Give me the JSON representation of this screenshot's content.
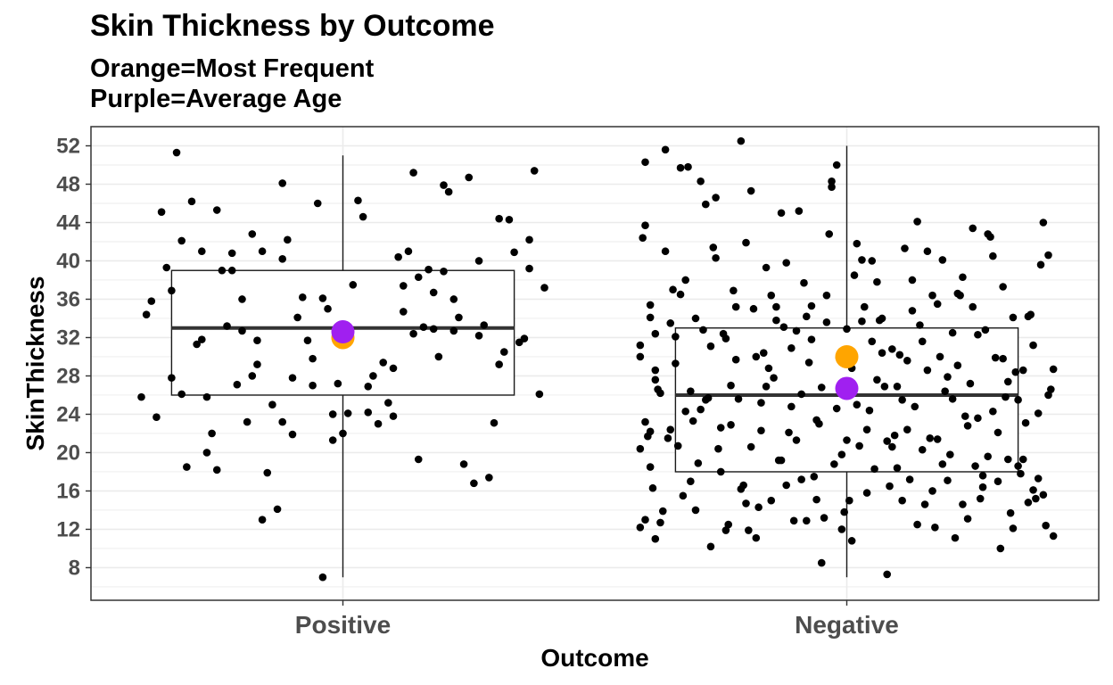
{
  "chart_data": {
    "type": "boxplot",
    "title": "Skin Thickness by Outcome",
    "subtitle_lines": [
      "Orange=Most Frequent",
      "Purple=Average Age"
    ],
    "xlabel": "Outcome",
    "ylabel": "SkinThickness",
    "categories": [
      "Positive",
      "Negative"
    ],
    "ylim": [
      4.6,
      54
    ],
    "yticks": [
      8,
      12,
      16,
      20,
      24,
      28,
      32,
      36,
      40,
      44,
      48,
      52
    ],
    "grid": true,
    "colors": {
      "orange": "#FFA500",
      "purple": "#A020F0",
      "points": "#000000",
      "box": "#1a1a1a",
      "median": "#333333",
      "grid": "#ebebeb"
    },
    "boxes": [
      {
        "category": "Positive",
        "min": 7,
        "q1": 26,
        "median": 33,
        "q3": 39,
        "max": 51,
        "mode": 32,
        "mean": 32.6
      },
      {
        "category": "Negative",
        "min": 7,
        "q1": 18,
        "median": 26,
        "q3": 33,
        "max": 52,
        "mode": 30,
        "mean": 26.7
      }
    ],
    "points": [
      {
        "category": "Positive",
        "x_offset": [
          -0.4,
          -0.39,
          -0.37,
          -0.36,
          -0.35,
          -0.34,
          -0.34,
          -0.33,
          -0.32,
          -0.32,
          -0.31,
          -0.29,
          -0.28,
          -0.28,
          -0.27,
          -0.27,
          -0.26,
          -0.25,
          -0.25,
          -0.24,
          -0.23,
          -0.22,
          -0.21,
          -0.2,
          -0.2,
          -0.19,
          -0.18,
          -0.18,
          -0.17,
          -0.17,
          -0.16,
          -0.16,
          -0.15,
          -0.14,
          -0.13,
          -0.12,
          -0.12,
          -0.11,
          -0.1,
          -0.1,
          -0.09,
          -0.08,
          -0.07,
          -0.06,
          -0.06,
          -0.05,
          -0.04,
          -0.03,
          -0.02,
          -0.02,
          -0.01,
          0.0,
          0.01,
          0.02,
          0.03,
          0.04,
          0.05,
          0.06,
          0.07,
          0.08,
          0.09,
          0.1,
          0.1,
          0.11,
          0.12,
          0.12,
          0.13,
          0.14,
          0.15,
          0.15,
          0.16,
          0.17,
          0.18,
          0.18,
          0.19,
          0.2,
          0.2,
          0.21,
          0.22,
          0.23,
          0.24,
          0.25,
          0.26,
          0.27,
          0.27,
          0.28,
          0.29,
          0.3,
          0.31,
          0.32,
          0.33,
          0.34,
          0.35,
          0.36,
          0.37,
          0.38,
          0.39,
          0.4,
          -0.38,
          -0.3,
          -0.22,
          -0.12,
          -0.04,
          0.05,
          0.14,
          0.22,
          0.31,
          0.37
        ],
        "y": [
          25.8,
          34.4,
          23.7,
          45.1,
          39.3,
          36.9,
          27.8,
          51.3,
          42.1,
          26.1,
          18.5,
          31.3,
          41.0,
          31.8,
          25.8,
          20.0,
          22.0,
          45.3,
          18.2,
          39.0,
          33.2,
          40.8,
          27.1,
          36.0,
          32.7,
          23.2,
          28.0,
          42.8,
          29.2,
          31.7,
          41.0,
          13.0,
          17.9,
          25.0,
          14.1,
          40.2,
          48.1,
          42.2,
          21.9,
          27.8,
          34.1,
          36.2,
          31.7,
          29.8,
          27.0,
          46.0,
          36.1,
          35.0,
          24.0,
          21.3,
          27.2,
          22.0,
          24.1,
          37.5,
          46.3,
          44.6,
          26.9,
          28.0,
          23.0,
          29.4,
          25.2,
          28.8,
          23.8,
          40.4,
          37.4,
          34.7,
          41.0,
          49.2,
          19.3,
          38.3,
          33.1,
          39.1,
          32.9,
          36.7,
          30.0,
          38.9,
          47.9,
          47.2,
          32.7,
          34.1,
          18.8,
          48.7,
          16.8,
          32.2,
          40.0,
          33.3,
          17.4,
          23.1,
          44.4,
          30.5,
          44.3,
          40.9,
          31.5,
          31.9,
          39.2,
          49.4,
          26.1,
          37.2,
          35.8,
          46.2,
          39.0,
          23.2,
          7.0,
          24.2,
          32.4,
          36.0,
          29.2,
          42.2
        ]
      },
      {
        "category": "Negative",
        "x_offset": [
          -0.41,
          -0.41,
          -0.4,
          -0.4,
          -0.39,
          -0.39,
          -0.38,
          -0.38,
          -0.37,
          -0.37,
          -0.36,
          -0.36,
          -0.35,
          -0.35,
          -0.34,
          -0.34,
          -0.33,
          -0.33,
          -0.32,
          -0.32,
          -0.31,
          -0.31,
          -0.3,
          -0.3,
          -0.29,
          -0.29,
          -0.28,
          -0.28,
          -0.27,
          -0.27,
          -0.26,
          -0.26,
          -0.25,
          -0.25,
          -0.24,
          -0.24,
          -0.23,
          -0.23,
          -0.22,
          -0.22,
          -0.21,
          -0.21,
          -0.2,
          -0.2,
          -0.19,
          -0.19,
          -0.18,
          -0.18,
          -0.17,
          -0.17,
          -0.16,
          -0.16,
          -0.15,
          -0.15,
          -0.14,
          -0.14,
          -0.13,
          -0.13,
          -0.12,
          -0.12,
          -0.11,
          -0.11,
          -0.1,
          -0.1,
          -0.09,
          -0.09,
          -0.08,
          -0.08,
          -0.07,
          -0.07,
          -0.06,
          -0.06,
          -0.05,
          -0.05,
          -0.04,
          -0.04,
          -0.03,
          -0.03,
          -0.02,
          -0.02,
          -0.01,
          -0.01,
          0.0,
          0.0,
          0.01,
          0.01,
          0.02,
          0.02,
          0.03,
          0.03,
          0.04,
          0.04,
          0.05,
          0.05,
          0.06,
          0.06,
          0.07,
          0.07,
          0.08,
          0.08,
          0.09,
          0.09,
          0.1,
          0.1,
          0.11,
          0.11,
          0.12,
          0.12,
          0.13,
          0.13,
          0.14,
          0.14,
          0.15,
          0.15,
          0.16,
          0.16,
          0.17,
          0.17,
          0.18,
          0.18,
          0.19,
          0.19,
          0.2,
          0.2,
          0.21,
          0.21,
          0.22,
          0.22,
          0.23,
          0.23,
          0.24,
          0.24,
          0.25,
          0.25,
          0.26,
          0.26,
          0.27,
          0.27,
          0.28,
          0.28,
          0.29,
          0.29,
          0.3,
          0.3,
          0.31,
          0.31,
          0.32,
          0.32,
          0.33,
          0.33,
          0.34,
          0.34,
          0.35,
          0.35,
          0.36,
          0.36,
          0.37,
          0.37,
          0.38,
          0.38,
          0.39,
          0.39,
          0.4,
          0.4,
          0.41,
          0.41,
          -0.405,
          -0.395,
          -0.385,
          -0.375,
          -0.365,
          -0.355,
          -0.345,
          -0.335,
          -0.325,
          -0.315,
          -0.305,
          -0.295,
          -0.285,
          -0.275,
          -0.265,
          -0.255,
          -0.245,
          -0.235,
          -0.225,
          -0.215,
          -0.205,
          -0.195,
          -0.185,
          -0.175,
          -0.165,
          -0.155,
          -0.145,
          -0.135,
          -0.125,
          -0.115,
          -0.105,
          -0.095,
          -0.085,
          -0.075,
          -0.065,
          -0.055,
          -0.045,
          -0.035,
          -0.025,
          -0.015,
          -0.005,
          0.005,
          0.015,
          0.025,
          0.035,
          0.045,
          0.055,
          0.065,
          0.075,
          0.085,
          0.095,
          0.105,
          0.115,
          0.125,
          0.135,
          0.145,
          0.155,
          0.165,
          0.175,
          0.185,
          0.195,
          0.205,
          0.215,
          0.225,
          0.235,
          0.245,
          0.255,
          0.265,
          0.275,
          0.285,
          0.295,
          0.305,
          0.315,
          0.325,
          0.335,
          0.345,
          0.355,
          0.365,
          0.375,
          0.385,
          0.395,
          0.405
        ],
        "y": [
          12.2,
          30.0,
          23.2,
          43.7,
          18.5,
          35.4,
          32.4,
          28.6,
          26.2,
          12.7,
          51.6,
          41.0,
          22.4,
          33.5,
          32.1,
          29.3,
          49.7,
          36.5,
          24.3,
          38.0,
          17.0,
          26.4,
          34.0,
          14.0,
          48.3,
          24.5,
          45.9,
          25.5,
          10.2,
          31.1,
          46.6,
          40.3,
          22.6,
          18.0,
          31.9,
          11.9,
          27.0,
          22.9,
          35.2,
          29.7,
          16.2,
          52.5,
          14.7,
          41.9,
          47.3,
          20.6,
          11.1,
          30.0,
          25.2,
          22.3,
          39.3,
          26.9,
          15.0,
          36.4,
          35.2,
          33.8,
          45.0,
          19.2,
          16.6,
          39.8,
          30.9,
          24.8,
          21.3,
          32.7,
          26.1,
          17.2,
          34.2,
          12.9,
          35.3,
          31.8,
          23.4,
          15.1,
          26.8,
          8.5,
          33.6,
          36.4,
          48.3,
          47.7,
          24.6,
          50.0,
          19.8,
          12.0,
          21.3,
          32.9,
          28.8,
          10.8,
          25.0,
          41.8,
          33.7,
          40.1,
          22.4,
          15.8,
          40.0,
          31.6,
          27.6,
          37.8,
          30.4,
          34.0,
          21.2,
          7.3,
          20.6,
          30.8,
          18.4,
          26.9,
          15.0,
          25.5,
          29.6,
          22.4,
          38.0,
          34.8,
          12.5,
          44.1,
          20.3,
          31.6,
          41.0,
          28.6,
          16.0,
          36.4,
          35.5,
          21.4,
          40.1,
          18.8,
          27.9,
          17.1,
          32.5,
          25.6,
          29.1,
          36.6,
          14.6,
          38.3,
          22.8,
          13.1,
          43.4,
          35.2,
          32.3,
          23.6,
          16.4,
          17.6,
          42.8,
          19.6,
          40.5,
          24.3,
          17.0,
          22.1,
          37.3,
          29.8,
          19.3,
          27.4,
          34.1,
          12.1,
          25.5,
          18.6,
          19.3,
          28.6,
          34.2,
          14.8,
          16.1,
          31.2,
          17.3,
          24.1,
          15.6,
          44.0,
          26.0,
          40.6,
          11.3,
          28.7,
          42.4,
          21.7,
          16.3,
          26.6,
          13.9,
          21.5,
          37.0,
          20.7,
          15.5,
          49.8,
          23.3,
          18.9,
          32.8,
          25.7,
          41.4,
          20.4,
          32.4,
          12.5,
          36.9,
          25.6,
          16.6,
          11.9,
          35.0,
          14.3,
          30.4,
          28.8,
          27.8,
          19.2,
          33.1,
          22.1,
          12.9,
          45.2,
          37.7,
          29.4,
          17.5,
          23.0,
          13.2,
          42.8,
          18.8,
          29.9,
          13.8,
          15.0,
          38.5,
          20.7,
          35.2,
          24.4,
          18.3,
          33.8,
          26.9,
          16.5,
          21.8,
          30.2,
          41.3,
          17.2,
          24.8,
          33.3,
          14.6,
          21.5,
          12.2,
          30.0,
          26.4,
          19.8,
          11.1,
          36.4,
          23.8,
          27.2,
          18.6,
          15.2,
          32.8,
          42.5,
          29.9,
          10.0,
          25.8,
          13.7,
          28.4,
          17.8,
          23.1,
          34.4,
          15.2,
          39.6,
          12.4,
          26.6,
          31.2,
          20.4,
          50.3,
          13.0,
          22.2,
          34.1,
          27.6,
          11.0
        ]
      }
    ]
  }
}
